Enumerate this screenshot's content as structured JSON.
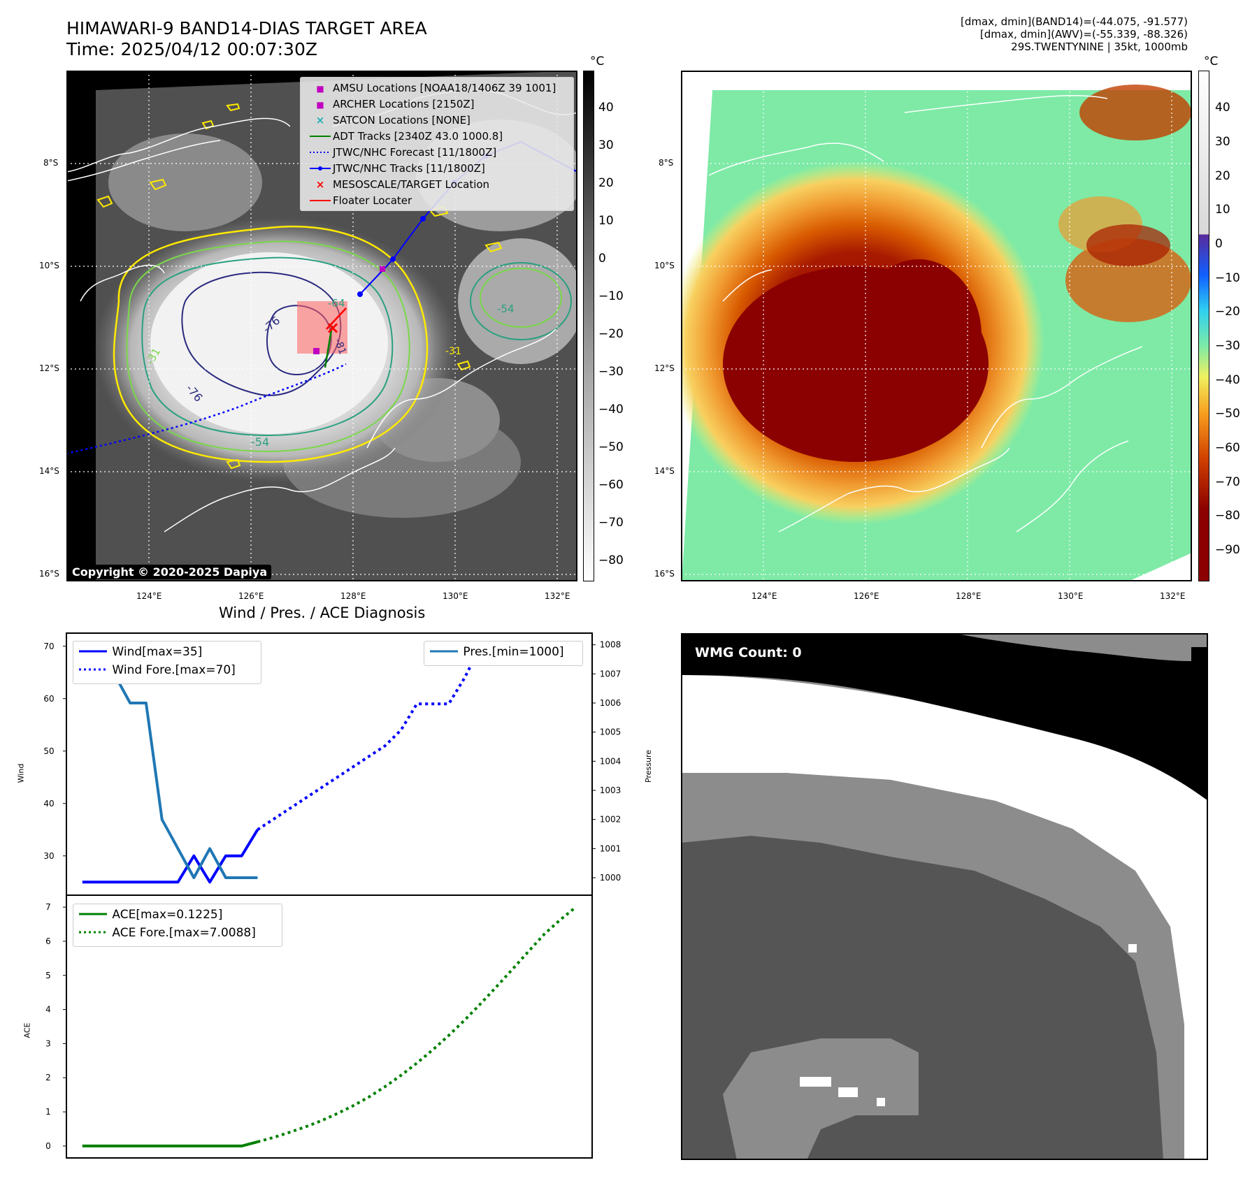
{
  "main_title": {
    "line1": "HIMAWARI-9 BAND14-DIAS TARGET AREA",
    "line2": "Time: 2025/04/12 00:07:30Z"
  },
  "info": {
    "line1": "[dmax, dmin](BAND14)=(-44.075, -91.577)",
    "line2": "[dmax, dmin](AWV)=(-55.339, -88.326)",
    "line3": "29S.TWENTYNINE | 35kt, 1000mb"
  },
  "maps": {
    "lat_ticks": [
      "8°S",
      "10°S",
      "12°S",
      "14°S",
      "16°S"
    ],
    "lon_ticks": [
      "124°E",
      "126°E",
      "128°E",
      "130°E",
      "132°E"
    ],
    "copyright": "Copyright © 2020-2025 Dapiya",
    "left_colorbar": {
      "unit": "°C",
      "ticks": [
        "40",
        "30",
        "20",
        "10",
        "0",
        "−10",
        "−20",
        "−30",
        "−40",
        "−50",
        "−60",
        "−70",
        "−80"
      ]
    },
    "right_colorbar": {
      "unit": "°C",
      "ticks": [
        "40",
        "30",
        "20",
        "10",
        "0",
        "−10",
        "−20",
        "−30",
        "−40",
        "−50",
        "−60",
        "−70",
        "−80",
        "−90"
      ]
    },
    "contour_labels": [
      "-76",
      "-81",
      "-76",
      "-64",
      "-54",
      "-31",
      "-54",
      "-31"
    ],
    "legend": [
      {
        "label": "AMSU Locations [NOAA18/1406Z 39 1001]",
        "symbol": "■",
        "color": "#c000c0"
      },
      {
        "label": "ARCHER Locations [2150Z]",
        "symbol": "■",
        "color": "#c000c0"
      },
      {
        "label": "SATCON Locations [NONE]",
        "symbol": "×",
        "color": "#20b0b0"
      },
      {
        "label": "ADT Tracks [2340Z 43.0 1000.8]",
        "symbol": "line",
        "color": "#008000"
      },
      {
        "label": "JTWC/NHC Forecast [11/1800Z]",
        "symbol": "dotted",
        "color": "#0000ff"
      },
      {
        "label": "JTWC/NHC Tracks [11/1800Z]",
        "symbol": "dotline",
        "color": "#0000ff"
      },
      {
        "label": "MESOSCALE/TARGET Location",
        "symbol": "×",
        "color": "#ff0000"
      },
      {
        "label": "Floater Locater",
        "symbol": "line",
        "color": "#ff0000"
      }
    ]
  },
  "diag_title": "Wind / Pres. / ACE Diagnosis",
  "wmg_label": "WMG Count: 0",
  "chart_data": [
    {
      "type": "line",
      "title": "Wind / Pres. / ACE Diagnosis",
      "xlabel": "",
      "ylabel": "Wind",
      "ylabel_right": "Pressure",
      "ylim": [
        22.5,
        72.5
      ],
      "ylim_right": [
        999.4,
        1008.4
      ],
      "yticks": [
        30,
        40,
        50,
        60,
        70
      ],
      "yticks_right": [
        1000,
        1001,
        1002,
        1003,
        1004,
        1005,
        1006,
        1007,
        1008
      ],
      "legend": [
        "Wind[max=35]",
        "Wind Fore.[max=70]",
        "Pres.[min=1000]"
      ],
      "series": [
        {
          "name": "Wind[max=35]",
          "axis": "left",
          "color": "#0000ff",
          "style": "solid",
          "x": [
            0,
            1,
            2,
            3,
            4,
            5,
            6,
            7,
            8,
            9,
            10,
            11
          ],
          "y": [
            25,
            25,
            25,
            25,
            25,
            25,
            25,
            30,
            25,
            30,
            30,
            35
          ]
        },
        {
          "name": "Wind Fore.[max=70]",
          "axis": "left",
          "color": "#0000ff",
          "style": "dotted",
          "x": [
            11,
            12,
            13,
            14,
            15,
            16,
            17,
            18,
            19,
            20,
            21,
            22,
            23,
            24,
            25,
            26,
            27,
            28,
            29,
            30,
            31
          ],
          "y": [
            35,
            37,
            39,
            41,
            43,
            45,
            47,
            49,
            51,
            54,
            59,
            59,
            59,
            64,
            70,
            70,
            70,
            70,
            70,
            70,
            67
          ]
        },
        {
          "name": "Pres.[min=1000]",
          "axis": "right",
          "color": "#1f77b4",
          "style": "solid",
          "x": [
            0,
            1,
            2,
            3,
            4,
            5,
            6,
            7,
            8,
            9,
            10,
            11
          ],
          "y": [
            1008,
            1007,
            1007,
            1006,
            1006,
            1002,
            1001,
            1000,
            1001,
            1000,
            1000,
            1000
          ]
        }
      ]
    },
    {
      "type": "line",
      "xlabel": "",
      "ylabel": "ACE",
      "ylim": [
        -0.35,
        7.35
      ],
      "yticks": [
        0,
        1,
        2,
        3,
        4,
        5,
        6,
        7
      ],
      "legend": [
        "ACE[max=0.1225]",
        "ACE Fore.[max=7.0088]"
      ],
      "series": [
        {
          "name": "ACE[max=0.1225]",
          "color": "#008000",
          "style": "solid",
          "x": [
            0,
            10,
            11
          ],
          "y": [
            0,
            0,
            0.1225
          ]
        },
        {
          "name": "ACE Fore.[max=7.0088]",
          "color": "#008000",
          "style": "dotted",
          "x": [
            11,
            12,
            13,
            14,
            15,
            16,
            17,
            18,
            19,
            20,
            21,
            22,
            23,
            24,
            25,
            26,
            27,
            28,
            29,
            30,
            31
          ],
          "y": [
            0.1225,
            0.25,
            0.4,
            0.56,
            0.74,
            0.95,
            1.18,
            1.44,
            1.74,
            2.07,
            2.43,
            2.82,
            3.24,
            3.69,
            4.17,
            4.67,
            5.18,
            5.7,
            6.21,
            6.63,
            7.0088
          ]
        }
      ]
    }
  ]
}
